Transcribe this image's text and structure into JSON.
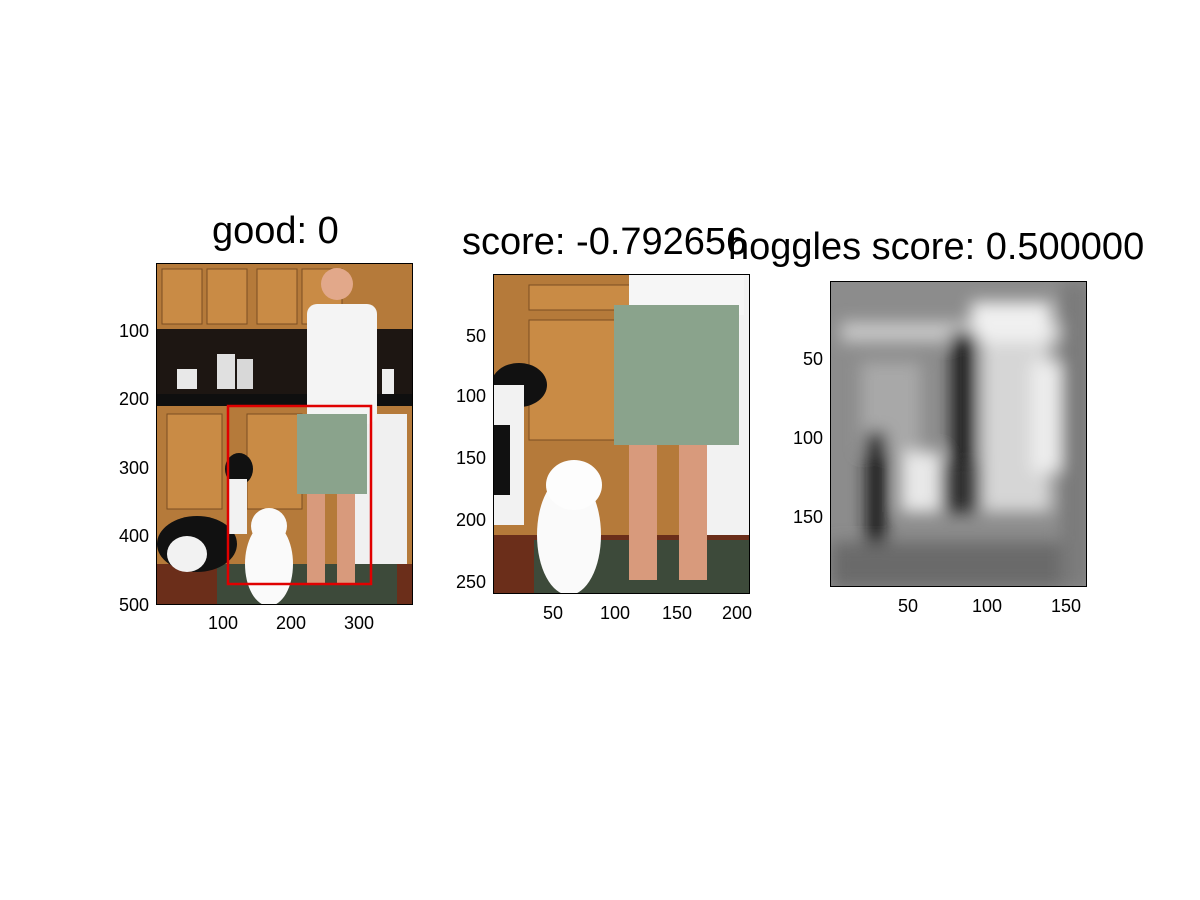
{
  "panels": [
    {
      "title": "good: 0",
      "y_ticks": [
        "100",
        "200",
        "300",
        "400",
        "500"
      ],
      "x_ticks": [
        "100",
        "200",
        "300"
      ],
      "image": "kitchen-photo-man-with-dogs",
      "overlay": "red-bounding-box"
    },
    {
      "title": "score: -0.792656",
      "y_ticks": [
        "50",
        "100",
        "150",
        "200",
        "250"
      ],
      "x_ticks": [
        "50",
        "100",
        "150",
        "200"
      ],
      "image": "cropped-photo-man-legs-dogs"
    },
    {
      "title": "hoggles score: 0.500000",
      "y_ticks": [
        "50",
        "100",
        "150"
      ],
      "x_ticks": [
        "50",
        "100",
        "150"
      ],
      "image": "grayscale-hoggles-visualization"
    }
  ],
  "colors": {
    "box": "#e00000",
    "wood": "#b57a3a",
    "shorts": "#8aa38c"
  }
}
